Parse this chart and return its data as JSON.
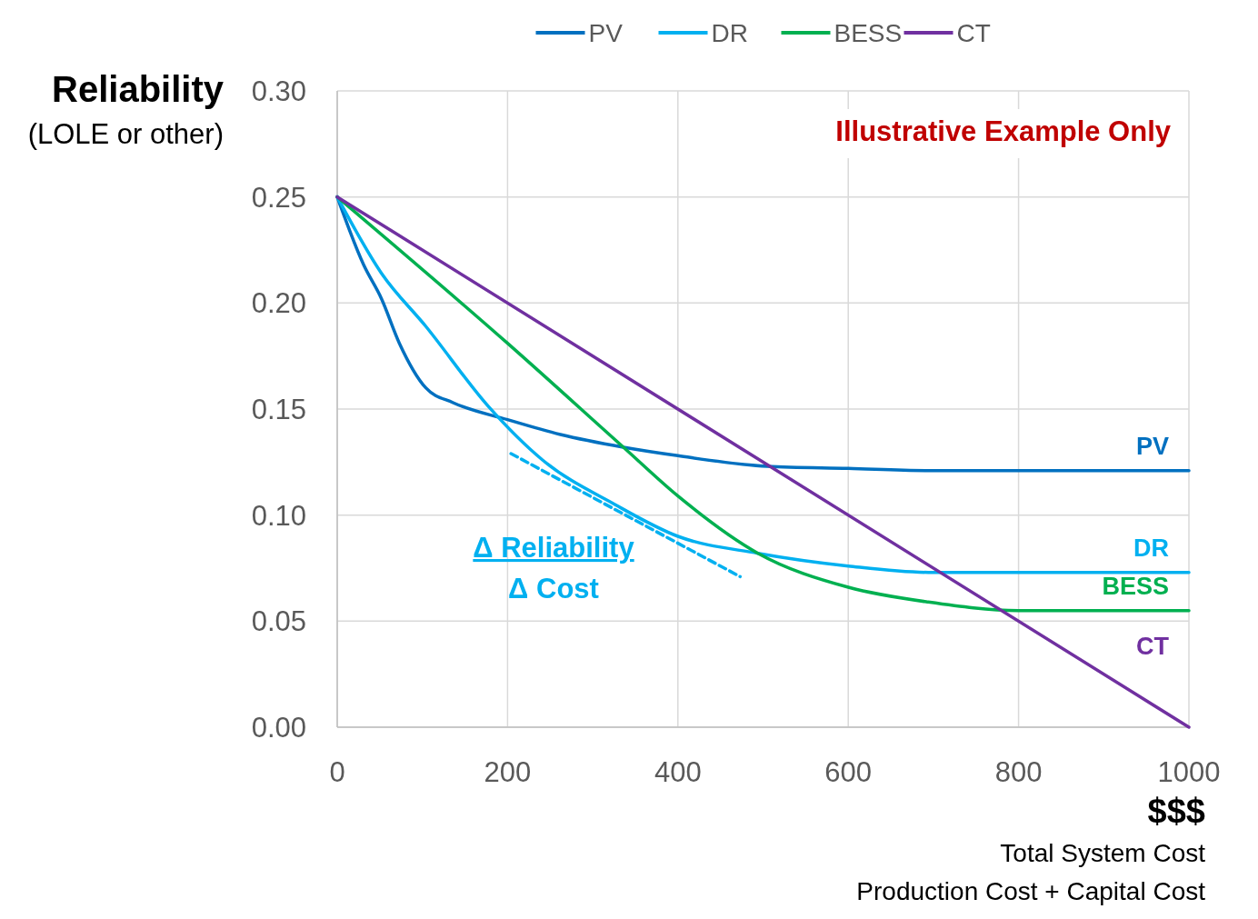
{
  "chart_data": {
    "type": "line",
    "ylabel": "Reliability",
    "xlabel": "$$$",
    "annotations": [
      "Illustrative Example Only",
      "(LOLE or other)",
      "Total System Cost",
      "Production Cost + Capital Cost",
      "Δ Reliability",
      "Δ Cost"
    ],
    "xlim": [
      0,
      1000
    ],
    "xticks": [
      0,
      200,
      400,
      600,
      800,
      1000
    ],
    "ylim": [
      0,
      0.3
    ],
    "yticks": [
      {
        "value": 0,
        "label": "0.00"
      },
      {
        "value": 0.05,
        "label": "0.05"
      },
      {
        "value": 0.1,
        "label": "0.10"
      },
      {
        "value": 0.15,
        "label": "0.15"
      },
      {
        "value": 0.2,
        "label": "0.20"
      },
      {
        "value": 0.25,
        "label": "0.25"
      },
      {
        "value": 0.3,
        "label": "0.30"
      }
    ],
    "grid": true,
    "legend": "top",
    "line_style": "solid",
    "series": [
      {
        "name": "PV",
        "color": "#0070c0",
        "x": [
          0,
          31,
          52,
          73,
          104,
          136,
          200,
          262,
          336,
          400,
          505,
          600,
          694,
          800,
          1000
        ],
        "values": [
          0.25,
          0.218,
          0.202,
          0.181,
          0.16,
          0.153,
          0.145,
          0.138,
          0.132,
          0.128,
          0.123,
          0.122,
          0.121,
          0.121,
          0.121
        ]
      },
      {
        "name": "DR",
        "color": "#00b0f0",
        "x": [
          0,
          52,
          104,
          178,
          241,
          326,
          400,
          494,
          600,
          694,
          800,
          1000
        ],
        "values": [
          0.25,
          0.214,
          0.189,
          0.151,
          0.126,
          0.105,
          0.09,
          0.082,
          0.076,
          0.073,
          0.073,
          0.073
        ]
      },
      {
        "name": "BESS",
        "color": "#00b050",
        "x": [
          0,
          200,
          336,
          400,
          494,
          600,
          694,
          800,
          1000
        ],
        "values": [
          0.25,
          0.181,
          0.132,
          0.109,
          0.082,
          0.066,
          0.059,
          0.055,
          0.055
        ]
      },
      {
        "name": "CT",
        "color": "#7030a0",
        "x": [
          0,
          1000
        ],
        "values": [
          0.25,
          0
        ]
      },
      {
        "color": "#00b0f0",
        "line_style": "dashed",
        "x": [
          204,
          473
        ],
        "values": [
          0.129,
          0.071
        ]
      }
    ]
  }
}
